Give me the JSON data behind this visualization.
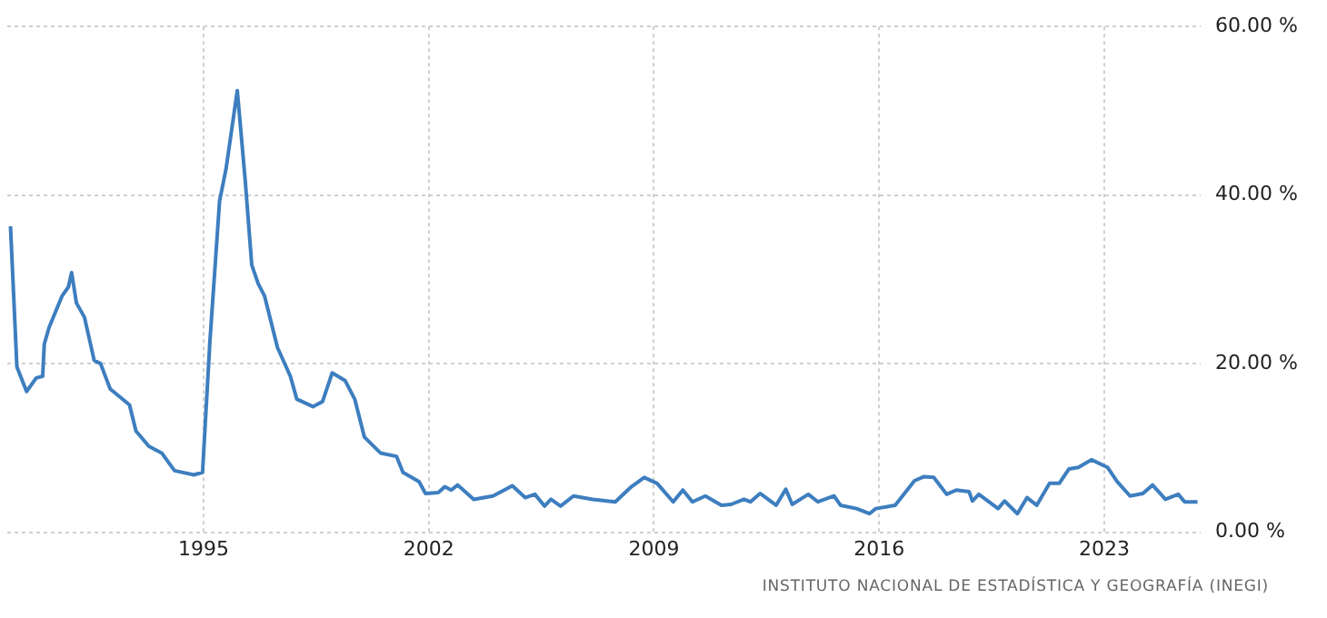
{
  "chart_data": {
    "type": "line",
    "x": [
      1989.0,
      1989.2,
      1989.5,
      1989.8,
      1990.0,
      1990.05,
      1990.2,
      1990.6,
      1990.8,
      1990.9,
      1991.05,
      1991.3,
      1991.6,
      1991.8,
      1992.1,
      1992.7,
      1992.9,
      1993.3,
      1993.7,
      1994.1,
      1994.7,
      1994.97,
      1995.2,
      1995.5,
      1995.7,
      1996.05,
      1996.3,
      1996.5,
      1996.7,
      1996.9,
      1997.3,
      1997.7,
      1997.9,
      1998.4,
      1998.7,
      1999.0,
      1999.4,
      1999.7,
      2000.0,
      2000.5,
      2001.0,
      2001.2,
      2001.7,
      2001.9,
      2002.3,
      2002.5,
      2002.7,
      2002.9,
      2003.4,
      2004.0,
      2004.6,
      2005.0,
      2005.3,
      2005.6,
      2005.8,
      2006.1,
      2006.5,
      2007.1,
      2007.8,
      2008.3,
      2008.7,
      2009.1,
      2009.6,
      2009.9,
      2010.2,
      2010.6,
      2011.1,
      2011.4,
      2011.8,
      2012.0,
      2012.3,
      2012.8,
      2013.1,
      2013.3,
      2013.8,
      2014.1,
      2014.6,
      2014.8,
      2015.3,
      2015.7,
      2015.9,
      2016.5,
      2017.1,
      2017.4,
      2017.7,
      2018.1,
      2018.4,
      2018.8,
      2018.9,
      2019.1,
      2019.7,
      2019.9,
      2020.3,
      2020.6,
      2020.9,
      2021.3,
      2021.6,
      2021.9,
      2022.2,
      2022.6,
      2023.1,
      2023.4,
      2023.8,
      2024.2,
      2024.5,
      2024.9,
      2025.3,
      2025.5,
      2025.9
    ],
    "series": [
      {
        "color": "#3d7ebf",
        "values": [
          36.3,
          19.6,
          16.7,
          18.3,
          18.5,
          22.3,
          24.3,
          28,
          29.1,
          30.8,
          27.2,
          25.5,
          20.4,
          20,
          17,
          15.1,
          12,
          10.2,
          9.4,
          7.3,
          6.8,
          7.1,
          22.7,
          39.3,
          43.1,
          52.4,
          41.6,
          31.7,
          29.5,
          28,
          21.9,
          18.5,
          15.8,
          14.9,
          15.5,
          18.9,
          18,
          15.8,
          11.3,
          9.4,
          9,
          7.1,
          6,
          4.6,
          4.7,
          5.4,
          5,
          5.6,
          3.9,
          4.3,
          5.5,
          4.1,
          4.5,
          3.1,
          3.9,
          3.1,
          4.3,
          3.9,
          3.6,
          5.4,
          6.5,
          5.8,
          3.6,
          5,
          3.6,
          4.3,
          3.2,
          3.3,
          3.9,
          3.6,
          4.6,
          3.2,
          5.1,
          3.3,
          4.5,
          3.6,
          4.3,
          3.2,
          2.8,
          2.2,
          2.8,
          3.2,
          6.1,
          6.6,
          6.5,
          4.5,
          5,
          4.8,
          3.7,
          4.5,
          2.8,
          3.7,
          2.2,
          4.1,
          3.2,
          5.8,
          5.8,
          7.5,
          7.7,
          8.6,
          7.7,
          6,
          4.3,
          4.6,
          5.6,
          3.9,
          4.5,
          3.6,
          3.6
        ]
      }
    ],
    "xlim": [
      1988.9,
      2026.0
    ],
    "xticks": [
      1995,
      2002,
      2009,
      2016,
      2023
    ],
    "ylim": [
      0,
      60
    ],
    "yticks": [
      {
        "value": 0,
        "label": "0.00 %"
      },
      {
        "value": 20,
        "label": "20.00 %"
      },
      {
        "value": 40,
        "label": "40.00 %"
      },
      {
        "value": 60,
        "label": "60.00 %"
      }
    ],
    "grid": true,
    "legend": false,
    "annotations": [
      "INSTITUTO NACIONAL DE ESTADÍSTICA Y GEOGRAFÍA (INEGI)"
    ]
  }
}
